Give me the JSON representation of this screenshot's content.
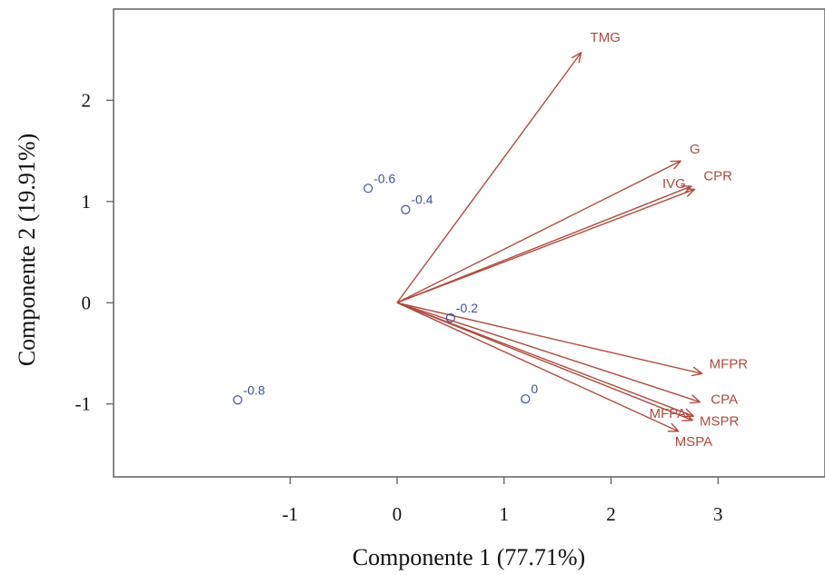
{
  "chart_data": {
    "type": "scatter",
    "subtype": "biplot",
    "title": "",
    "xlabel": "Componente 1 (77.71%)",
    "ylabel": "Componente 2 (19.91%)",
    "xlim": [
      -2.65,
      4.0
    ],
    "ylim": [
      -1.72,
      2.9
    ],
    "xticks": [
      -1,
      0,
      1,
      2,
      3
    ],
    "yticks": [
      -1,
      0,
      1,
      2
    ],
    "grid": false,
    "legend": "none",
    "colors": {
      "vectors": "#b04a3d",
      "points": "#3c4fa0",
      "axes": "#555555"
    },
    "vectors": [
      {
        "name": "TMG",
        "x": 1.72,
        "y": 2.47
      },
      {
        "name": "G",
        "x": 2.65,
        "y": 1.4
      },
      {
        "name": "IVG",
        "x": 2.75,
        "y": 1.15
      },
      {
        "name": "CPR",
        "x": 2.78,
        "y": 1.12
      },
      {
        "name": "MFPR",
        "x": 2.85,
        "y": -0.7
      },
      {
        "name": "CPA",
        "x": 2.83,
        "y": -0.98
      },
      {
        "name": "MFPA",
        "x": 2.77,
        "y": -1.12
      },
      {
        "name": "MSPR",
        "x": 2.76,
        "y": -1.16
      },
      {
        "name": "MSPA",
        "x": 2.63,
        "y": -1.27
      }
    ],
    "points": [
      {
        "label": "-0.6",
        "x": -0.27,
        "y": 1.13
      },
      {
        "label": "-0.4",
        "x": 0.08,
        "y": 0.92
      },
      {
        "label": "-0.2",
        "x": 0.5,
        "y": -0.15
      },
      {
        "label": "-0.8",
        "x": -1.49,
        "y": -0.96
      },
      {
        "label": "0",
        "x": 1.2,
        "y": -0.95
      }
    ]
  }
}
